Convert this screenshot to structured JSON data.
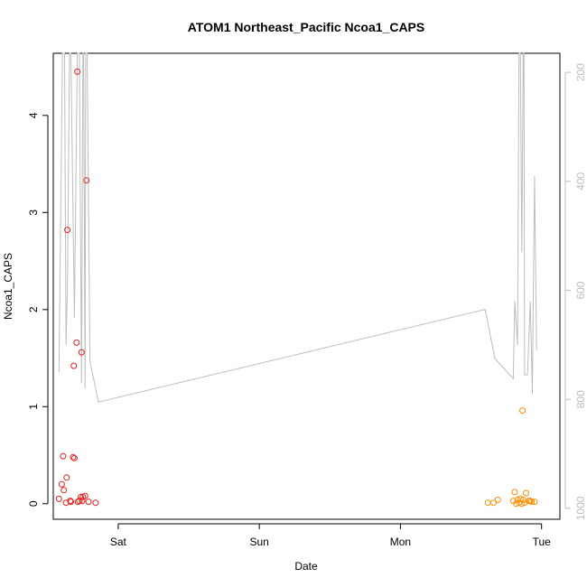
{
  "chart_data": {
    "type": "scatter",
    "title": "ATOM1 Northeast_Pacific Ncoa1_CAPS",
    "xlabel": "Date",
    "ylabel": "Ncoa1_CAPS",
    "x_unit": "days",
    "x_ticks": [
      {
        "label": "Sat",
        "value": 1.0
      },
      {
        "label": "Sun",
        "value": 2.0
      },
      {
        "label": "Mon",
        "value": 3.0
      },
      {
        "label": "Tue",
        "value": 4.0
      }
    ],
    "xlim": [
      0.54,
      4.13
    ],
    "ylim": [
      -0.16,
      4.64
    ],
    "y_ticks": [
      0,
      1,
      2,
      3,
      4
    ],
    "y2lim": [
      1020,
      165
    ],
    "y2_ticks": [
      200,
      400,
      600,
      800,
      1000
    ],
    "grid": false,
    "series": [
      {
        "color": "#e8211c",
        "marker": "open-circle",
        "points": [
          [
            0.58,
            0.05
          ],
          [
            0.6,
            0.2
          ],
          [
            0.61,
            0.49
          ],
          [
            0.615,
            0.14
          ],
          [
            0.63,
            0.01
          ],
          [
            0.635,
            0.27
          ],
          [
            0.64,
            2.82
          ],
          [
            0.66,
            0.03
          ],
          [
            0.665,
            0.02
          ],
          [
            0.68,
            0.48
          ],
          [
            0.685,
            1.42
          ],
          [
            0.69,
            0.47
          ],
          [
            0.705,
            1.66
          ],
          [
            0.71,
            4.45
          ],
          [
            0.715,
            0.02
          ],
          [
            0.725,
            0.03
          ],
          [
            0.735,
            0.07
          ],
          [
            0.74,
            1.56
          ],
          [
            0.745,
            0.03
          ],
          [
            0.75,
            0.07
          ],
          [
            0.765,
            0.08
          ],
          [
            0.775,
            3.33
          ],
          [
            0.79,
            0.02
          ],
          [
            0.84,
            0.01
          ]
        ]
      },
      {
        "color": "#ff8c00",
        "marker": "open-circle",
        "points": [
          [
            3.62,
            0.01
          ],
          [
            3.66,
            0.01
          ],
          [
            3.69,
            0.04
          ],
          [
            3.8,
            0.03
          ],
          [
            3.81,
            0.12
          ],
          [
            3.82,
            0.0
          ],
          [
            3.83,
            0.04
          ],
          [
            3.84,
            0.01
          ],
          [
            3.85,
            0.05
          ],
          [
            3.86,
            0.0
          ],
          [
            3.865,
            0.96
          ],
          [
            3.87,
            0.04
          ],
          [
            3.88,
            0.01
          ],
          [
            3.89,
            0.11
          ],
          [
            3.91,
            0.03
          ],
          [
            3.92,
            0.03
          ],
          [
            3.93,
            0.02
          ],
          [
            3.95,
            0.02
          ]
        ]
      }
    ],
    "depth_line": {
      "color": "#bdbdbd",
      "points": [
        [
          0.58,
          750
        ],
        [
          0.605,
          150
        ],
        [
          0.62,
          150
        ],
        [
          0.63,
          700
        ],
        [
          0.64,
          600
        ],
        [
          0.655,
          150
        ],
        [
          0.665,
          150
        ],
        [
          0.69,
          650
        ],
        [
          0.71,
          150
        ],
        [
          0.725,
          150
        ],
        [
          0.74,
          770
        ],
        [
          0.75,
          150
        ],
        [
          0.755,
          150
        ],
        [
          0.765,
          780
        ],
        [
          0.77,
          150
        ],
        [
          0.78,
          150
        ],
        [
          0.8,
          730
        ],
        [
          0.86,
          805
        ],
        [
          3.6,
          635
        ],
        [
          3.67,
          725
        ],
        [
          3.8,
          762
        ],
        [
          3.81,
          620
        ],
        [
          3.83,
          700
        ],
        [
          3.84,
          150
        ],
        [
          3.85,
          150
        ],
        [
          3.86,
          530
        ],
        [
          3.87,
          150
        ],
        [
          3.875,
          150
        ],
        [
          3.88,
          755
        ],
        [
          3.9,
          755
        ],
        [
          3.92,
          620
        ],
        [
          3.935,
          790
        ],
        [
          3.95,
          390
        ],
        [
          3.965,
          710
        ]
      ]
    }
  }
}
